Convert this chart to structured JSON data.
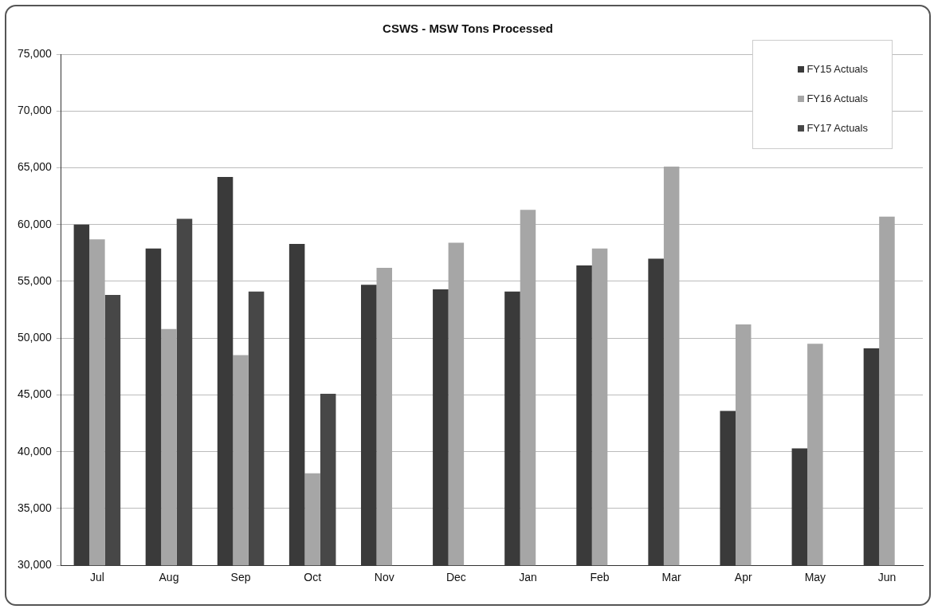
{
  "chart_data": {
    "type": "bar",
    "title": "CSWS - MSW Tons Processed",
    "categories": [
      "Jul",
      "Aug",
      "Sep",
      "Oct",
      "Nov",
      "Dec",
      "Jan",
      "Feb",
      "Mar",
      "Apr",
      "May",
      "Jun"
    ],
    "series": [
      {
        "name": "FY15 Actuals",
        "color": "#3a3a3a",
        "values": [
          60000,
          57900,
          64200,
          58300,
          54700,
          54300,
          54100,
          56400,
          57000,
          43600,
          40300,
          49100
        ]
      },
      {
        "name": "FY16 Actuals",
        "color": "#a6a6a6",
        "values": [
          58700,
          50800,
          48500,
          38100,
          56200,
          58400,
          61300,
          57900,
          65100,
          51200,
          49500,
          60700
        ]
      },
      {
        "name": "FY17 Actuals",
        "color": "#474747",
        "values": [
          53800,
          60500,
          54100,
          45100,
          null,
          null,
          null,
          null,
          null,
          null,
          null,
          null
        ]
      }
    ],
    "ylim": [
      30000,
      75000
    ],
    "yticks": [
      {
        "value": 30000,
        "label": "30,000"
      },
      {
        "value": 35000,
        "label": "35,000"
      },
      {
        "value": 40000,
        "label": "40,000"
      },
      {
        "value": 45000,
        "label": "45,000"
      },
      {
        "value": 50000,
        "label": "50,000"
      },
      {
        "value": 55000,
        "label": "55,000"
      },
      {
        "value": 60000,
        "label": "60,000"
      },
      {
        "value": 65000,
        "label": "65,000"
      },
      {
        "value": 70000,
        "label": "70,000"
      },
      {
        "value": 75000,
        "label": "75,000"
      }
    ],
    "grid": "y",
    "legend": "top right"
  }
}
